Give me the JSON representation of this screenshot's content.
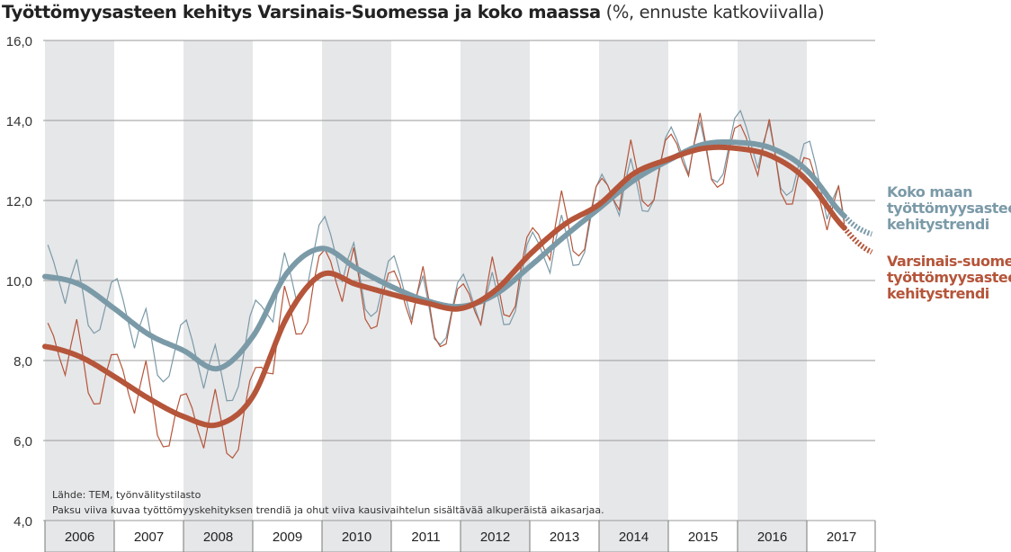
{
  "title": "Työttömyysasteen kehitys Varsinais-Suomessa ja koko maassa",
  "subtitle": "(%, ennuste katkoviivalla)",
  "colors": {
    "national": "#7b9aa8",
    "regional": "#b5553a",
    "band": "#e6e7e9",
    "grid": "#9a9a9a"
  },
  "legend": {
    "national": [
      "Koko maan",
      "työttömyysasteen",
      "kehitystrendi"
    ],
    "regional": [
      "Varsinais-suomen",
      "työttömyysasteen",
      "kehitystrendi"
    ]
  },
  "notes": {
    "source": "Lähde: TEM, työnvälitystilasto",
    "explanation": "Paksu viiva kuvaa työttömyyskehityksen trendiä ja ohut viiva kausivaihtelun sisältävää alkuperäistä aikasarjaa."
  },
  "chart_data": {
    "type": "line",
    "title": "Työttömyysasteen kehitys Varsinais-Suomessa ja koko maassa (%, ennuste katkoviivalla)",
    "xlabel": "",
    "ylabel": "%",
    "ylim": [
      4,
      16
    ],
    "yticks": [
      "4,0",
      "6,0",
      "8,0",
      "10,0",
      "12,0",
      "14,0",
      "16,0"
    ],
    "ytick_values": [
      4,
      6,
      8,
      10,
      12,
      14,
      16
    ],
    "categories": [
      "2006",
      "2007",
      "2008",
      "2009",
      "2010",
      "2011",
      "2012",
      "2013",
      "2014",
      "2015",
      "2016",
      "2017"
    ],
    "xlim": [
      2006,
      2018
    ],
    "grid": true,
    "legend_position": "right",
    "forecast_start": 2017.55,
    "trend_x": [
      2006.0,
      2006.5,
      2007.0,
      2007.5,
      2008.0,
      2008.5,
      2009.0,
      2009.5,
      2010.0,
      2010.5,
      2011.0,
      2011.5,
      2012.0,
      2012.5,
      2013.0,
      2013.5,
      2014.0,
      2014.5,
      2015.0,
      2015.5,
      2016.0,
      2016.5,
      2017.0,
      2017.55,
      2017.95
    ],
    "series": [
      {
        "name": "Koko maan työttömyysasteen kehitystrendi",
        "key": "national",
        "trend": [
          10.1,
          9.9,
          9.3,
          8.65,
          8.25,
          7.8,
          8.6,
          10.2,
          10.8,
          10.3,
          9.85,
          9.5,
          9.35,
          9.65,
          10.35,
          11.1,
          11.8,
          12.5,
          13.0,
          13.4,
          13.45,
          13.3,
          12.75,
          11.6,
          11.15
        ],
        "raw_seasonal_deviation": [
          0.8,
          0.4,
          -0.1,
          -0.6,
          0.1,
          0.6,
          -0.1,
          -0.9,
          -1.0,
          -0.8,
          -0.1,
          0.6
        ]
      },
      {
        "name": "Varsinais-suomen työttömyysasteen kehitystrendi",
        "key": "regional",
        "trend": [
          8.35,
          8.1,
          7.6,
          7.05,
          6.6,
          6.4,
          7.1,
          9.1,
          10.15,
          9.9,
          9.66,
          9.44,
          9.3,
          9.75,
          10.65,
          11.4,
          11.9,
          12.67,
          13.03,
          13.3,
          13.3,
          13.1,
          12.5,
          11.3,
          10.7
        ],
        "raw_seasonal_deviation": [
          0.6,
          0.3,
          -0.2,
          -0.6,
          0.2,
          0.9,
          0.1,
          -0.8,
          -1.0,
          -0.9,
          -0.1,
          0.5
        ]
      }
    ]
  }
}
